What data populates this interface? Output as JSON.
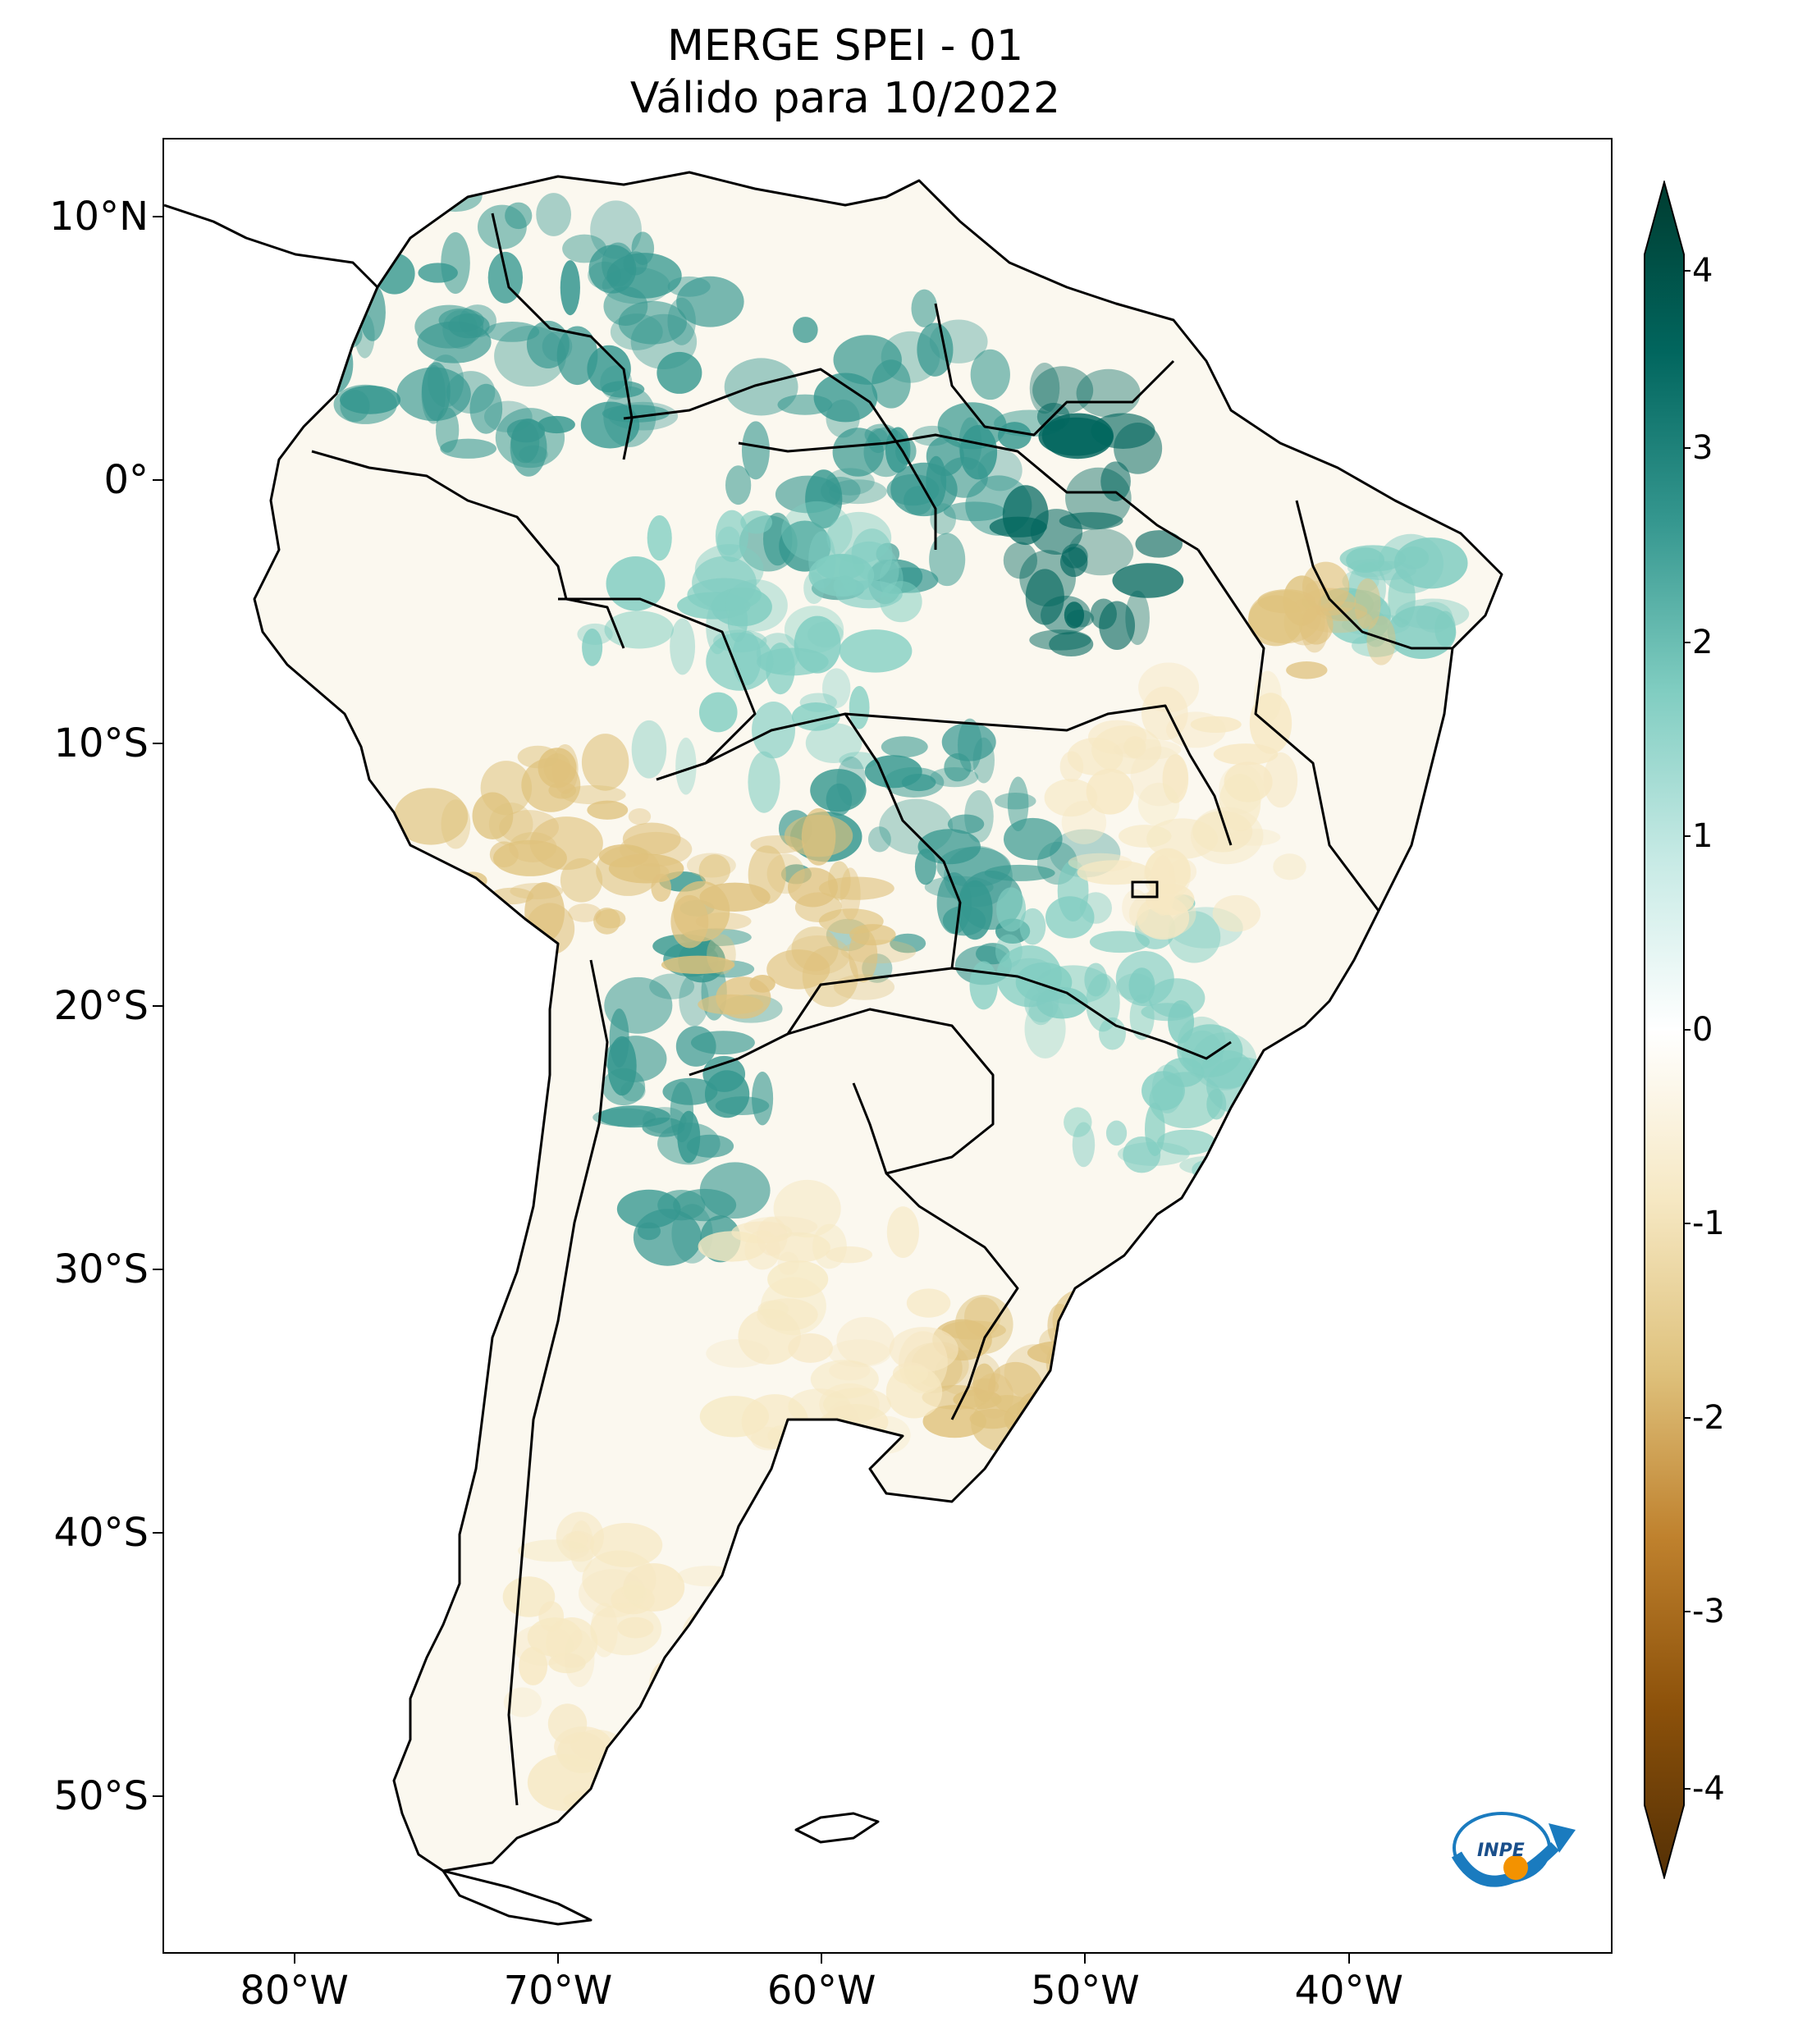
{
  "title": {
    "line1": "MERGE   SPEI - 01",
    "line2": "Válido para 10/2022"
  },
  "map": {
    "region": "South America",
    "lat_ticks": [
      "10°N",
      "0°",
      "10°S",
      "20°S",
      "30°S",
      "40°S",
      "50°S"
    ],
    "lon_ticks": [
      "80°W",
      "70°W",
      "60°W",
      "50°W",
      "40°W"
    ],
    "lat_values": [
      10,
      0,
      -10,
      -20,
      -30,
      -40,
      -50
    ],
    "lon_values": [
      -80,
      -70,
      -60,
      -50,
      -40
    ],
    "lon_range": [
      -85,
      -30
    ],
    "lat_range": [
      13,
      -56
    ]
  },
  "colorbar": {
    "ticks": [
      "4",
      "3",
      "2",
      "1",
      "0",
      "-1",
      "-2",
      "-3",
      "-4"
    ],
    "min": -4,
    "max": 4,
    "colors": [
      "#543005",
      "#8c510a",
      "#bf812d",
      "#dfc27d",
      "#f6e8c3",
      "#ffffff",
      "#c7eae5",
      "#80cdc1",
      "#35978f",
      "#01665e",
      "#003c30"
    ]
  },
  "logo": {
    "text": "INPE"
  }
}
